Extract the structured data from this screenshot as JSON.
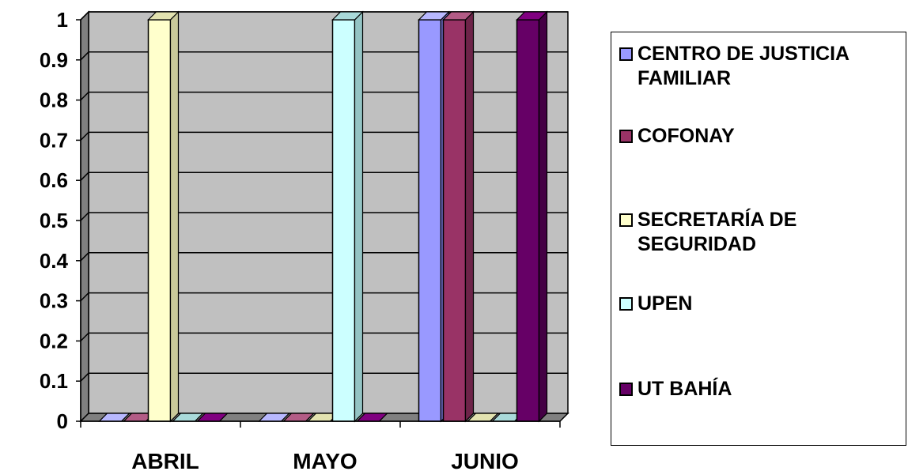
{
  "chart_data": {
    "type": "bar",
    "categories": [
      "ABRIL",
      "MAYO",
      "JUNIO"
    ],
    "series": [
      {
        "name": "CENTRO DE JUSTICIA FAMILIAR",
        "values": [
          0,
          0,
          1
        ],
        "color": "#9999FF",
        "side": "#7070CC",
        "top": "#B8B8FF"
      },
      {
        "name": "COFONAY",
        "values": [
          0,
          0,
          1
        ],
        "color": "#993366",
        "side": "#6E2449",
        "top": "#B35C86"
      },
      {
        "name": "SECRETARÍA DE SEGURIDAD",
        "values": [
          1,
          0,
          0
        ],
        "color": "#FFFFCC",
        "side": "#C9C99A",
        "top": "#E3E3B0"
      },
      {
        "name": "UPEN",
        "values": [
          0,
          1,
          0
        ],
        "color": "#CCFFFF",
        "side": "#94C4C4",
        "top": "#A9DADA"
      },
      {
        "name": "UT BAHÍA",
        "values": [
          0,
          0,
          1
        ],
        "color": "#660066",
        "side": "#440044",
        "top": "#800080"
      }
    ],
    "y_ticks": [
      "0",
      "0.1",
      "0.2",
      "0.3",
      "0.4",
      "0.5",
      "0.6",
      "0.7",
      "0.8",
      "0.9",
      "1"
    ],
    "ylim": [
      0,
      1
    ],
    "grid": true,
    "legend_position": "right",
    "plot_wall_color": "#C0C0C0",
    "plot_side_wall_color": "#808080",
    "plot_floor_color": "#808080"
  }
}
